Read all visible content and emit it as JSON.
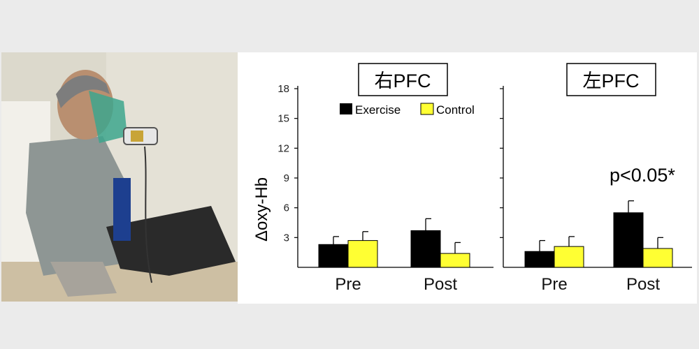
{
  "colors": {
    "page_background": "#ebebeb",
    "exercise": "#000000",
    "control": "#ffff33"
  },
  "photo": {
    "description_icon": "person-with-breathing-mask"
  },
  "chart_data": [
    {
      "type": "bar",
      "title": "右PFC",
      "ylabel": "Δoxy-Hb",
      "ylim": [
        0,
        18
      ],
      "yticks": [
        3,
        6,
        9,
        12,
        15,
        18
      ],
      "categories": [
        "Pre",
        "Post"
      ],
      "series": [
        {
          "name": "Exercise",
          "values": [
            2.3,
            3.7
          ],
          "errors": [
            0.8,
            1.2
          ]
        },
        {
          "name": "Control",
          "values": [
            2.7,
            1.4
          ],
          "errors": [
            0.9,
            1.1
          ]
        }
      ],
      "legend": {
        "position": "top-right",
        "items": [
          "Exercise",
          "Control"
        ]
      }
    },
    {
      "type": "bar",
      "title": "左PFC",
      "ylim": [
        0,
        18
      ],
      "yticks": [
        3,
        6,
        9,
        12,
        15,
        18
      ],
      "categories": [
        "Pre",
        "Post"
      ],
      "series": [
        {
          "name": "Exercise",
          "values": [
            1.6,
            5.5
          ],
          "errors": [
            1.1,
            1.2
          ]
        },
        {
          "name": "Control",
          "values": [
            2.1,
            1.9
          ],
          "errors": [
            1.0,
            1.1
          ]
        }
      ],
      "annotations": [
        "p<0.05*"
      ]
    }
  ]
}
